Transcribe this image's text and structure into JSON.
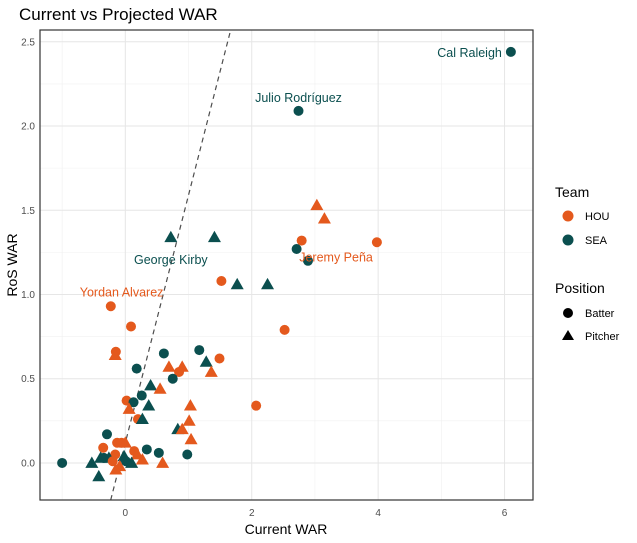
{
  "chart_data": {
    "type": "scatter",
    "title": "Current vs Projected WAR",
    "xlabel": "Current WAR",
    "ylabel": "RoS WAR",
    "xlim": [
      -1.35,
      6.45
    ],
    "ylim": [
      -0.22,
      2.57
    ],
    "xticks": [
      0,
      2,
      4,
      6
    ],
    "yticks": [
      0.0,
      0.5,
      1.0,
      1.5,
      2.0,
      2.5
    ],
    "xtick_labels": [
      "0",
      "2",
      "4",
      "6"
    ],
    "ytick_labels": [
      "0.0",
      "0.5",
      "1.0",
      "1.5",
      "2.0",
      "2.5"
    ],
    "grid": true,
    "reference_line": {
      "style": "dashed",
      "color": "#4d4d4d",
      "slope": 1.47,
      "intercept": 0.12
    },
    "colors": {
      "HOU": "#E4591D",
      "SEA": "#0B4F4F"
    },
    "legend": {
      "placement": "right",
      "team": {
        "title": "Team",
        "entries": [
          "HOU",
          "SEA"
        ]
      },
      "position": {
        "title": "Position",
        "entries": [
          "Batter",
          "Pitcher"
        ]
      }
    },
    "annotations": [
      {
        "text": "Cal Raleigh",
        "team": "SEA",
        "x": 6.1,
        "y": 2.44,
        "anchor": "end"
      },
      {
        "text": "Julio Rodríguez",
        "team": "SEA",
        "x": 2.74,
        "y": 2.09,
        "anchor": "middle"
      },
      {
        "text": "George Kirby",
        "team": "SEA",
        "x": 0.72,
        "y": 1.34,
        "anchor": "middle"
      },
      {
        "text": "Jeremy Peña",
        "team": "HOU",
        "x": 3.98,
        "y": 1.31,
        "anchor": "end"
      },
      {
        "text": "Yordan Alvarez",
        "team": "HOU",
        "x": -0.23,
        "y": 0.93,
        "anchor": "start"
      }
    ],
    "points": [
      {
        "team": "SEA",
        "pos": "Batter",
        "x": 6.1,
        "y": 2.44
      },
      {
        "team": "SEA",
        "pos": "Batter",
        "x": 2.74,
        "y": 2.09
      },
      {
        "team": "HOU",
        "pos": "Pitcher",
        "x": 3.03,
        "y": 1.53
      },
      {
        "team": "HOU",
        "pos": "Pitcher",
        "x": 3.15,
        "y": 1.45
      },
      {
        "team": "HOU",
        "pos": "Batter",
        "x": 2.79,
        "y": 1.32
      },
      {
        "team": "HOU",
        "pos": "Batter",
        "x": 3.98,
        "y": 1.31
      },
      {
        "team": "SEA",
        "pos": "Batter",
        "x": 2.71,
        "y": 1.27
      },
      {
        "team": "SEA",
        "pos": "Batter",
        "x": 2.89,
        "y": 1.2
      },
      {
        "team": "SEA",
        "pos": "Pitcher",
        "x": 0.72,
        "y": 1.34
      },
      {
        "team": "SEA",
        "pos": "Pitcher",
        "x": 1.41,
        "y": 1.34
      },
      {
        "team": "HOU",
        "pos": "Batter",
        "x": 1.52,
        "y": 1.08
      },
      {
        "team": "SEA",
        "pos": "Pitcher",
        "x": 1.77,
        "y": 1.06
      },
      {
        "team": "SEA",
        "pos": "Pitcher",
        "x": 2.25,
        "y": 1.06
      },
      {
        "team": "HOU",
        "pos": "Batter",
        "x": -0.23,
        "y": 0.93
      },
      {
        "team": "HOU",
        "pos": "Batter",
        "x": 0.09,
        "y": 0.81
      },
      {
        "team": "HOU",
        "pos": "Batter",
        "x": 2.52,
        "y": 0.79
      },
      {
        "team": "HOU",
        "pos": "Batter",
        "x": -0.15,
        "y": 0.66
      },
      {
        "team": "HOU",
        "pos": "Pitcher",
        "x": -0.16,
        "y": 0.64
      },
      {
        "team": "SEA",
        "pos": "Batter",
        "x": 0.61,
        "y": 0.65
      },
      {
        "team": "SEA",
        "pos": "Batter",
        "x": 1.17,
        "y": 0.67
      },
      {
        "team": "HOU",
        "pos": "Batter",
        "x": 1.49,
        "y": 0.62
      },
      {
        "team": "SEA",
        "pos": "Pitcher",
        "x": 1.28,
        "y": 0.6
      },
      {
        "team": "HOU",
        "pos": "Pitcher",
        "x": 1.36,
        "y": 0.54
      },
      {
        "team": "SEA",
        "pos": "Batter",
        "x": 0.18,
        "y": 0.56
      },
      {
        "team": "HOU",
        "pos": "Pitcher",
        "x": 0.69,
        "y": 0.57
      },
      {
        "team": "HOU",
        "pos": "Pitcher",
        "x": 0.9,
        "y": 0.57
      },
      {
        "team": "HOU",
        "pos": "Batter",
        "x": 0.85,
        "y": 0.54
      },
      {
        "team": "SEA",
        "pos": "Batter",
        "x": 0.75,
        "y": 0.5
      },
      {
        "team": "SEA",
        "pos": "Pitcher",
        "x": 0.4,
        "y": 0.46
      },
      {
        "team": "HOU",
        "pos": "Pitcher",
        "x": 0.55,
        "y": 0.44
      },
      {
        "team": "SEA",
        "pos": "Batter",
        "x": 0.26,
        "y": 0.4
      },
      {
        "team": "HOU",
        "pos": "Batter",
        "x": 0.02,
        "y": 0.37
      },
      {
        "team": "SEA",
        "pos": "Batter",
        "x": 0.13,
        "y": 0.36
      },
      {
        "team": "HOU",
        "pos": "Pitcher",
        "x": 0.06,
        "y": 0.32
      },
      {
        "team": "SEA",
        "pos": "Pitcher",
        "x": 0.37,
        "y": 0.34
      },
      {
        "team": "HOU",
        "pos": "Pitcher",
        "x": 1.03,
        "y": 0.34
      },
      {
        "team": "HOU",
        "pos": "Batter",
        "x": 2.07,
        "y": 0.34
      },
      {
        "team": "HOU",
        "pos": "Batter",
        "x": 0.2,
        "y": 0.26
      },
      {
        "team": "SEA",
        "pos": "Pitcher",
        "x": 0.27,
        "y": 0.26
      },
      {
        "team": "HOU",
        "pos": "Pitcher",
        "x": 1.01,
        "y": 0.25
      },
      {
        "team": "SEA",
        "pos": "Pitcher",
        "x": 0.83,
        "y": 0.2
      },
      {
        "team": "HOU",
        "pos": "Pitcher",
        "x": 0.9,
        "y": 0.2
      },
      {
        "team": "HOU",
        "pos": "Pitcher",
        "x": 1.04,
        "y": 0.14
      },
      {
        "team": "SEA",
        "pos": "Batter",
        "x": -0.29,
        "y": 0.17
      },
      {
        "team": "HOU",
        "pos": "Batter",
        "x": -0.13,
        "y": 0.12
      },
      {
        "team": "HOU",
        "pos": "Batter",
        "x": -0.06,
        "y": 0.12
      },
      {
        "team": "HOU",
        "pos": "Pitcher",
        "x": 0.0,
        "y": 0.12
      },
      {
        "team": "HOU",
        "pos": "Batter",
        "x": -0.35,
        "y": 0.09
      },
      {
        "team": "SEA",
        "pos": "Batter",
        "x": 0.34,
        "y": 0.08
      },
      {
        "team": "HOU",
        "pos": "Batter",
        "x": 0.14,
        "y": 0.07
      },
      {
        "team": "SEA",
        "pos": "Batter",
        "x": 0.53,
        "y": 0.06
      },
      {
        "team": "SEA",
        "pos": "Batter",
        "x": 0.98,
        "y": 0.05
      },
      {
        "team": "HOU",
        "pos": "Batter",
        "x": -0.16,
        "y": 0.05
      },
      {
        "team": "HOU",
        "pos": "Pitcher",
        "x": 0.19,
        "y": 0.05
      },
      {
        "team": "SEA",
        "pos": "Pitcher",
        "x": -0.02,
        "y": 0.04
      },
      {
        "team": "SEA",
        "pos": "Pitcher",
        "x": -0.39,
        "y": 0.03
      },
      {
        "team": "SEA",
        "pos": "Pitcher",
        "x": -0.26,
        "y": 0.03
      },
      {
        "team": "SEA",
        "pos": "Batter",
        "x": -0.34,
        "y": 0.03
      },
      {
        "team": "HOU",
        "pos": "Pitcher",
        "x": 0.27,
        "y": 0.02
      },
      {
        "team": "HOU",
        "pos": "Batter",
        "x": -0.2,
        "y": 0.01
      },
      {
        "team": "SEA",
        "pos": "Batter",
        "x": 0.01,
        "y": 0.01
      },
      {
        "team": "SEA",
        "pos": "Batter",
        "x": -1.0,
        "y": 0.0
      },
      {
        "team": "SEA",
        "pos": "Pitcher",
        "x": -0.53,
        "y": 0.0
      },
      {
        "team": "SEA",
        "pos": "Pitcher",
        "x": 0.1,
        "y": 0.0
      },
      {
        "team": "HOU",
        "pos": "Pitcher",
        "x": 0.59,
        "y": 0.0
      },
      {
        "team": "HOU",
        "pos": "Pitcher",
        "x": -0.09,
        "y": -0.02
      },
      {
        "team": "HOU",
        "pos": "Pitcher",
        "x": -0.15,
        "y": -0.04
      },
      {
        "team": "SEA",
        "pos": "Pitcher",
        "x": -0.42,
        "y": -0.08
      }
    ]
  }
}
